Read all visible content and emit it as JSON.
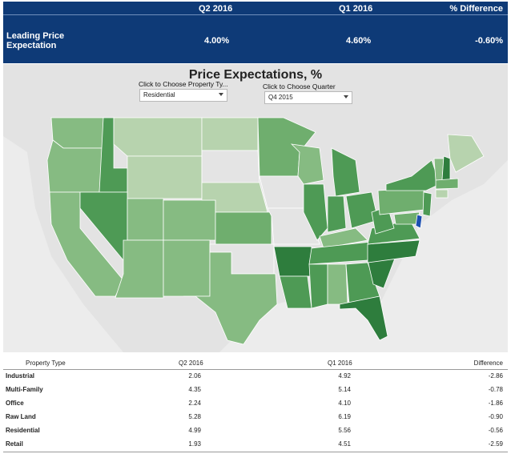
{
  "header": {
    "col_q2": "Q2 2016",
    "col_q1": "Q1 2016",
    "col_diff": "% Difference",
    "metric_label": "Leading Price Expectation",
    "q2_value": "4.00%",
    "q1_value": "4.60%",
    "diff_value": "-0.60%"
  },
  "map": {
    "title": "Price Expectations, %",
    "property_filter_label": "Click to Choose Property Ty...",
    "property_filter_value": "Residential",
    "quarter_filter_label": "Click to Choose Quarter",
    "quarter_filter_value": "Q4 2015",
    "colors": {
      "background": "#ececec",
      "land": "#e4e4e4",
      "border": "#ffffff",
      "shade_light": "#b7d3ae",
      "shade_mid": "#86bb82",
      "shade_mid2": "#6fae6e",
      "shade_dark": "#4e9a55",
      "shade_darkest": "#2e7d3d",
      "highlight": "#1c4fb0"
    }
  },
  "table": {
    "headers": {
      "type": "Property Type",
      "q2": "Q2 2016",
      "q1": "Q1 2016",
      "diff": "Difference"
    },
    "rows": [
      {
        "type": "Industrial",
        "q2": "2.06",
        "q1": "4.92",
        "diff": "-2.86"
      },
      {
        "type": "Multi-Family",
        "q2": "4.35",
        "q1": "5.14",
        "diff": "-0.78"
      },
      {
        "type": "Office",
        "q2": "2.24",
        "q1": "4.10",
        "diff": "-1.86"
      },
      {
        "type": "Raw Land",
        "q2": "5.28",
        "q1": "6.19",
        "diff": "-0.90"
      },
      {
        "type": "Residential",
        "q2": "4.99",
        "q1": "5.56",
        "diff": "-0.56"
      },
      {
        "type": "Retail",
        "q2": "1.93",
        "q1": "4.51",
        "diff": "-2.59"
      }
    ]
  }
}
